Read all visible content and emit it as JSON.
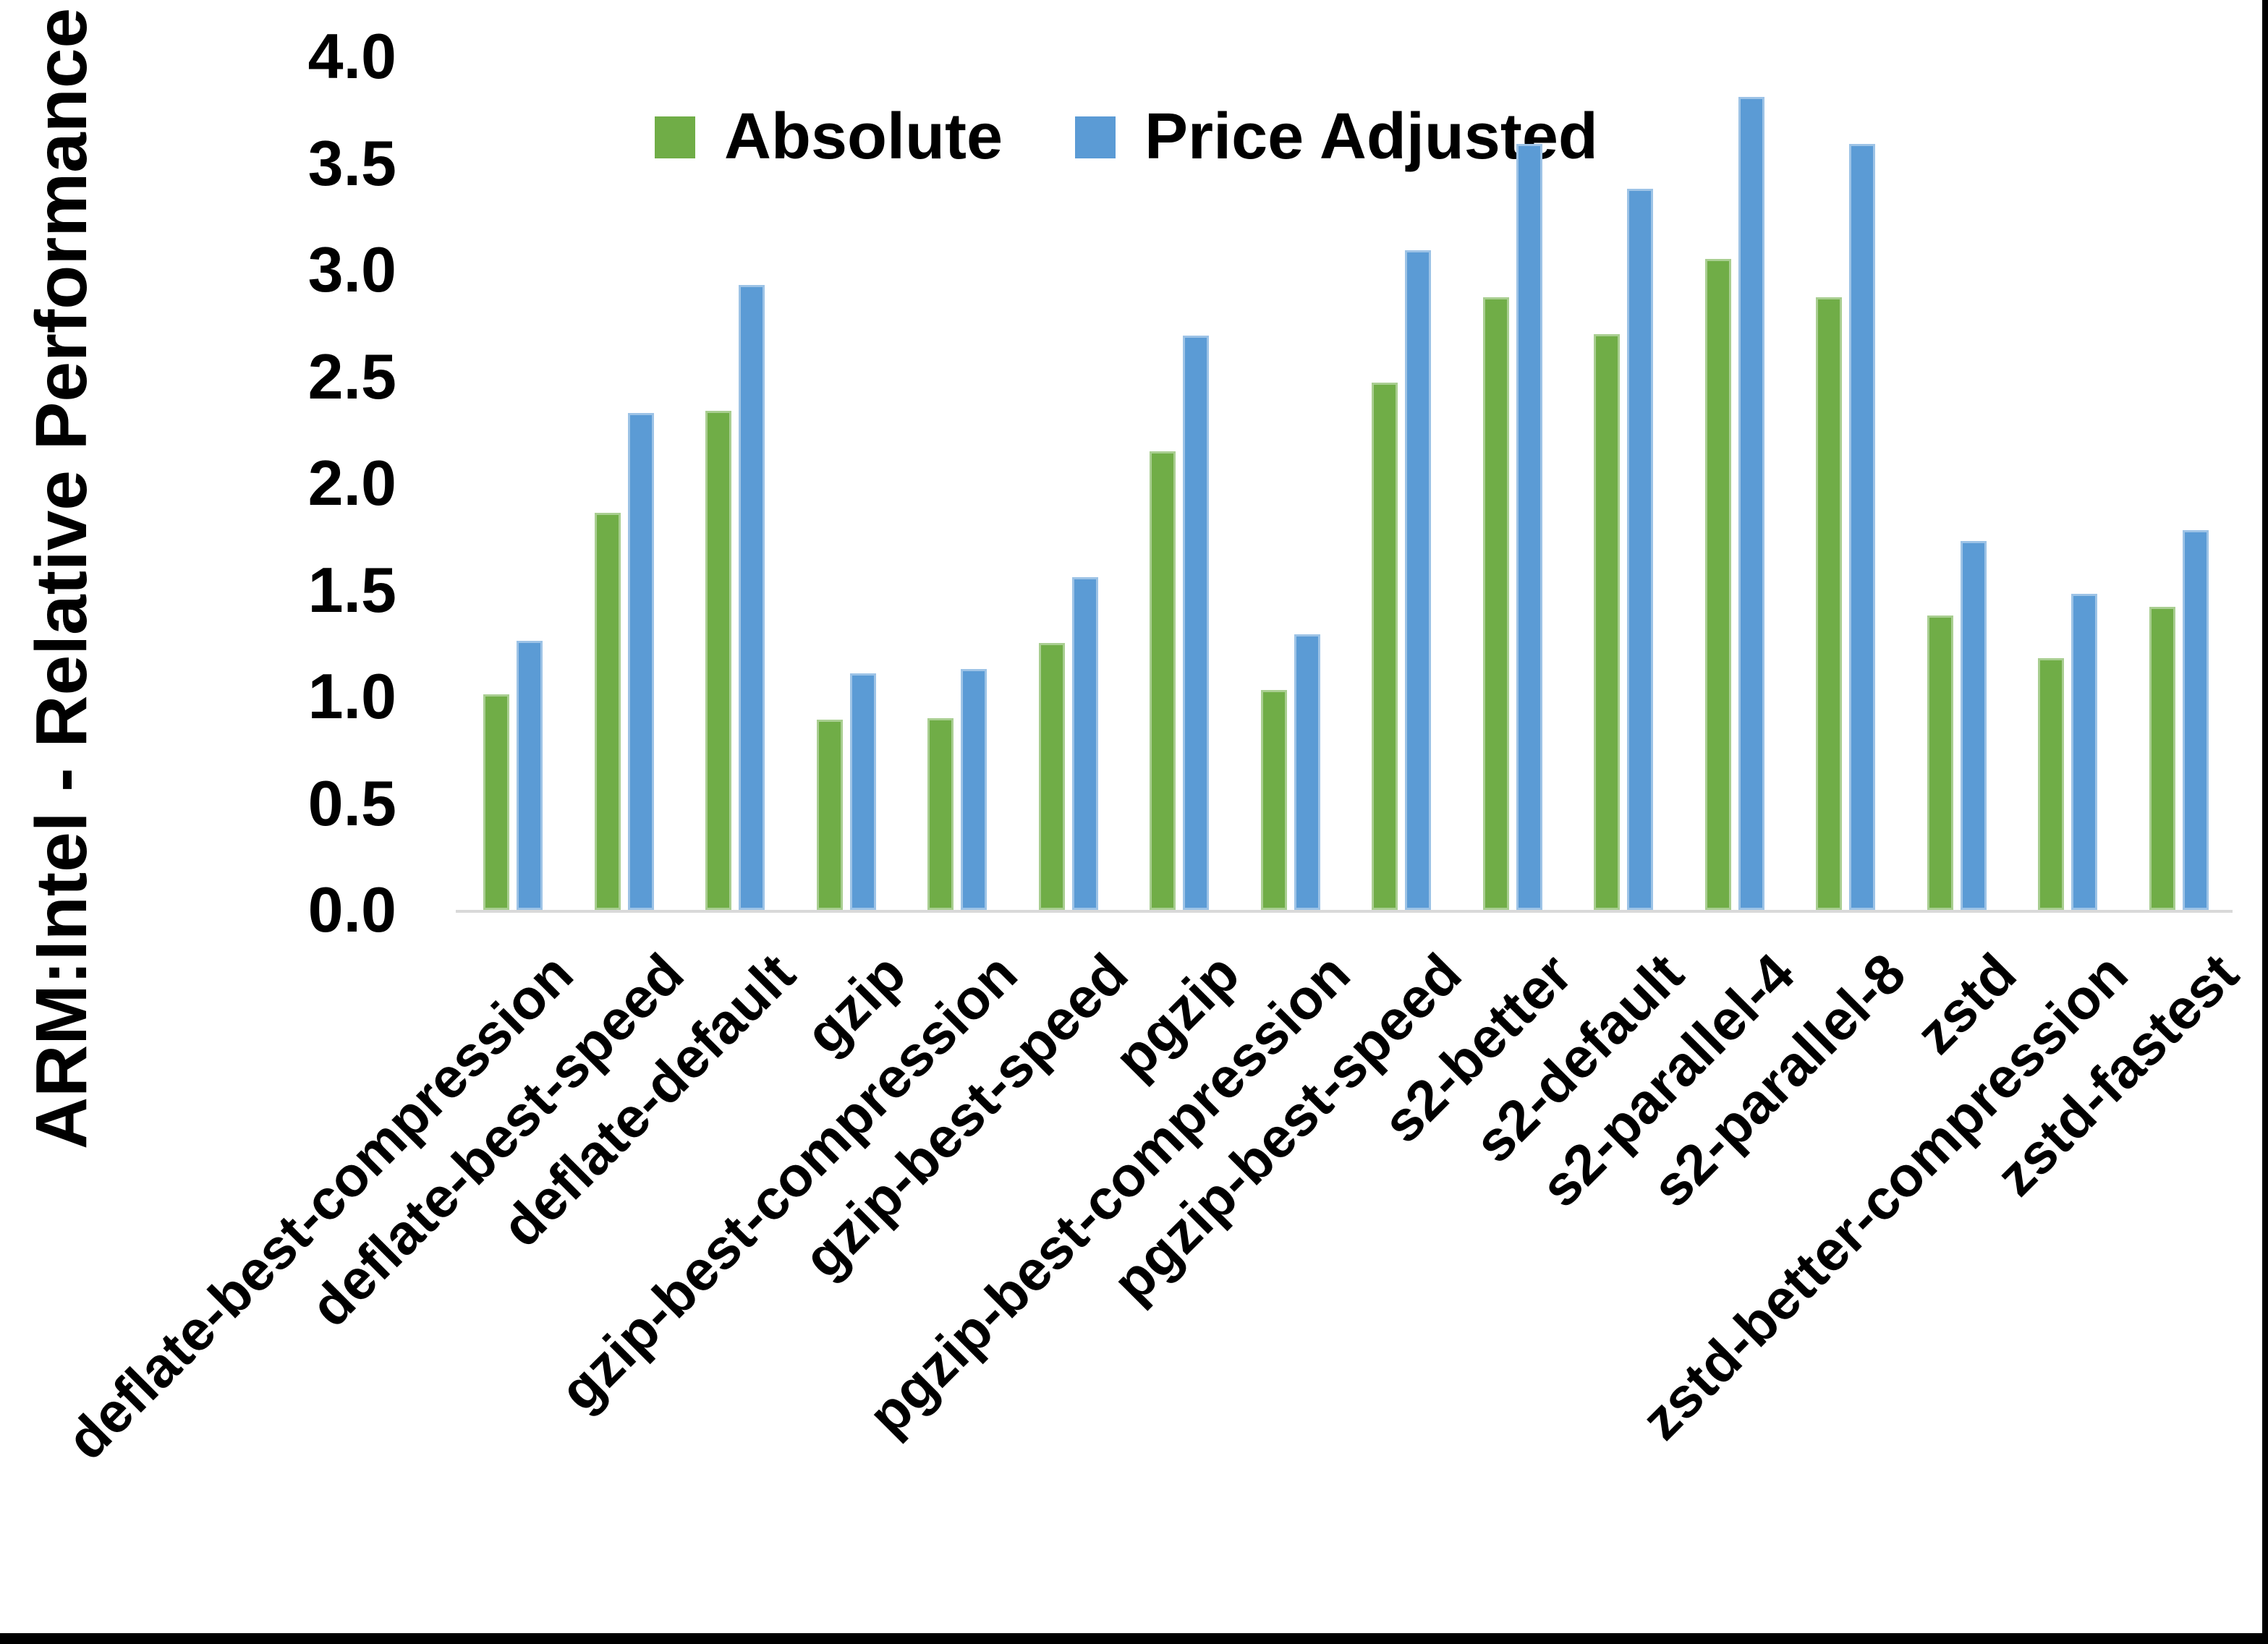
{
  "chart_data": {
    "type": "bar",
    "title": "",
    "xlabel": "",
    "ylabel": "ARM:Intel - Relative Performance",
    "ylim": [
      0.0,
      4.0
    ],
    "ytick_step": 0.5,
    "ytick_labels": [
      "0.0",
      "0.5",
      "1.0",
      "1.5",
      "2.0",
      "2.5",
      "3.0",
      "3.5",
      "4.0"
    ],
    "grid": false,
    "legend_position": "top-center",
    "categories": [
      "deflate-best-compression",
      "deflate-best-speed",
      "deflate-default",
      "gzip",
      "gzip-best-compression",
      "gzip-best-speed",
      "pgzip",
      "pgzip-best-compression",
      "pgzip-best-speed",
      "s2-better",
      "s2-default",
      "s2-parallel-4",
      "s2-parallel-8",
      "zstd",
      "zstd-better-compression",
      "zstd-fastest"
    ],
    "series": [
      {
        "name": "Absolute",
        "color": "#70AD47",
        "values": [
          1.01,
          1.86,
          2.34,
          0.89,
          0.9,
          1.25,
          2.15,
          1.03,
          2.47,
          2.87,
          2.7,
          3.05,
          2.87,
          1.38,
          1.18,
          1.42
        ]
      },
      {
        "name": "Price Adjusted",
        "color": "#5B9BD5",
        "values": [
          1.26,
          2.33,
          2.93,
          1.11,
          1.13,
          1.56,
          2.69,
          1.29,
          3.09,
          3.59,
          3.38,
          3.81,
          3.59,
          1.73,
          1.48,
          1.78
        ]
      }
    ]
  },
  "colors": {
    "background": "#FFFFFF",
    "text": "#000000",
    "axis_line": "#D9D9D9",
    "screen_border": "#000000"
  }
}
